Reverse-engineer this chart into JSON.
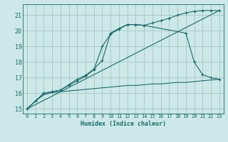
{
  "xlabel": "Humidex (Indice chaleur)",
  "xlim": [
    -0.5,
    23.5
  ],
  "ylim": [
    14.7,
    21.7
  ],
  "xticks": [
    0,
    1,
    2,
    3,
    4,
    5,
    6,
    7,
    8,
    9,
    10,
    11,
    12,
    13,
    14,
    15,
    16,
    17,
    18,
    19,
    20,
    21,
    22,
    23
  ],
  "yticks": [
    15,
    16,
    17,
    18,
    19,
    20,
    21
  ],
  "bg_color": "#cce8e8",
  "grid_color": "#aacccc",
  "line_color": "#1a6b6b",
  "line1_x": [
    0,
    1,
    2,
    3,
    4,
    5,
    6,
    7,
    8,
    9,
    10,
    11,
    12,
    13,
    14,
    15,
    16,
    17,
    18,
    19,
    20,
    21,
    22,
    23
  ],
  "line1_y": [
    15.0,
    15.5,
    15.9,
    16.05,
    16.1,
    16.15,
    16.2,
    16.25,
    16.3,
    16.35,
    16.4,
    16.45,
    16.5,
    16.5,
    16.55,
    16.6,
    16.6,
    16.65,
    16.7,
    16.7,
    16.75,
    16.8,
    16.85,
    16.9
  ],
  "line2_x": [
    0,
    23
  ],
  "line2_y": [
    15.0,
    21.3
  ],
  "line3_x": [
    0,
    1,
    2,
    3,
    4,
    5,
    6,
    7,
    8,
    9,
    10,
    11,
    12,
    13,
    14,
    15,
    16,
    17,
    18,
    19,
    20,
    21,
    22,
    23
  ],
  "line3_y": [
    15.0,
    15.5,
    16.0,
    16.1,
    16.2,
    16.55,
    16.9,
    17.15,
    17.55,
    18.1,
    19.85,
    20.15,
    20.4,
    20.4,
    20.35,
    20.5,
    20.65,
    20.8,
    21.0,
    21.15,
    21.25,
    21.3,
    21.3,
    21.3
  ],
  "line4_x": [
    0,
    1,
    2,
    3,
    4,
    5,
    6,
    7,
    8,
    9,
    10,
    11,
    12,
    13,
    14,
    19,
    20,
    21,
    22,
    23
  ],
  "line4_y": [
    15.0,
    15.5,
    16.0,
    16.1,
    16.2,
    16.5,
    16.8,
    17.1,
    17.5,
    19.0,
    19.8,
    20.1,
    20.4,
    20.4,
    20.35,
    19.85,
    18.0,
    17.2,
    17.0,
    16.9
  ]
}
